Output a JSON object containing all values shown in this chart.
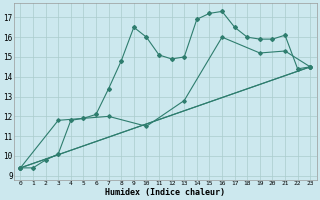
{
  "xlabel": "Humidex (Indice chaleur)",
  "background_color": "#cce8ee",
  "grid_color": "#aacccc",
  "line_color": "#2e7d6e",
  "xlim": [
    -0.5,
    23.5
  ],
  "ylim": [
    8.8,
    17.7
  ],
  "yticks": [
    9,
    10,
    11,
    12,
    13,
    14,
    15,
    16,
    17
  ],
  "xticks": [
    0,
    1,
    2,
    3,
    4,
    5,
    6,
    7,
    8,
    9,
    10,
    11,
    12,
    13,
    14,
    15,
    16,
    17,
    18,
    19,
    20,
    21,
    22,
    23
  ],
  "series_main": {
    "x": [
      0,
      1,
      2,
      3,
      4,
      5,
      6,
      7,
      8,
      9,
      10,
      11,
      12,
      13,
      14,
      15,
      16,
      17,
      18,
      19,
      20,
      21,
      22,
      23
    ],
    "y": [
      9.4,
      9.4,
      9.8,
      10.1,
      11.8,
      11.9,
      12.1,
      13.4,
      14.8,
      16.5,
      16.0,
      15.1,
      14.9,
      15.0,
      16.9,
      17.2,
      17.3,
      16.5,
      16.0,
      15.9,
      15.9,
      16.1,
      14.4,
      14.5
    ]
  },
  "series_trend": [
    {
      "x": [
        0,
        23
      ],
      "y": [
        9.4,
        14.5
      ]
    },
    {
      "x": [
        0,
        23
      ],
      "y": [
        9.4,
        14.5
      ]
    },
    {
      "x": [
        0,
        3,
        7,
        10,
        13,
        16,
        19,
        21,
        23
      ],
      "y": [
        9.4,
        11.8,
        12.0,
        11.5,
        12.8,
        16.0,
        15.2,
        15.3,
        14.5
      ]
    }
  ]
}
